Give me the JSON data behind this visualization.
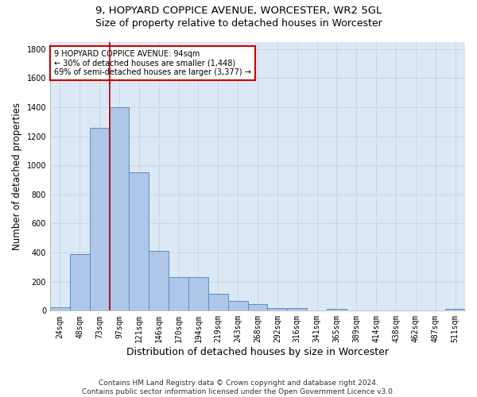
{
  "title1": "9, HOPYARD COPPICE AVENUE, WORCESTER, WR2 5GL",
  "title2": "Size of property relative to detached houses in Worcester",
  "xlabel": "Distribution of detached houses by size in Worcester",
  "ylabel": "Number of detached properties",
  "footer": "Contains HM Land Registry data © Crown copyright and database right 2024.\nContains public sector information licensed under the Open Government Licence v3.0.",
  "bin_labels": [
    "24sqm",
    "48sqm",
    "73sqm",
    "97sqm",
    "121sqm",
    "146sqm",
    "170sqm",
    "194sqm",
    "219sqm",
    "243sqm",
    "268sqm",
    "292sqm",
    "316sqm",
    "341sqm",
    "365sqm",
    "389sqm",
    "414sqm",
    "438sqm",
    "462sqm",
    "487sqm",
    "511sqm"
  ],
  "bar_values": [
    25,
    390,
    1260,
    1400,
    950,
    410,
    230,
    230,
    115,
    65,
    45,
    20,
    20,
    0,
    15,
    0,
    0,
    0,
    0,
    0,
    15
  ],
  "bar_color": "#aec6e8",
  "bar_edge_color": "#5b8ec4",
  "grid_color": "#c8d4e0",
  "vline_color": "#aa0000",
  "annotation_text": "9 HOPYARD COPPICE AVENUE: 94sqm\n← 30% of detached houses are smaller (1,448)\n69% of semi-detached houses are larger (3,377) →",
  "annotation_box_color": "#cc0000",
  "ylim": [
    0,
    1850
  ],
  "yticks": [
    0,
    200,
    400,
    600,
    800,
    1000,
    1200,
    1400,
    1600,
    1800
  ],
  "ax_bg_color": "#dce8f5",
  "background_color": "#ffffff",
  "title1_fontsize": 9.5,
  "title2_fontsize": 9,
  "ylabel_fontsize": 8.5,
  "xlabel_fontsize": 9,
  "tick_fontsize": 7,
  "footer_fontsize": 6.5
}
